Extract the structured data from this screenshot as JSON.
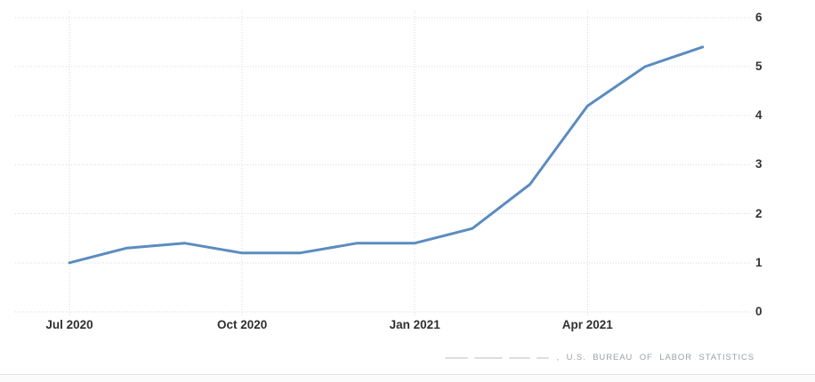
{
  "chart_data": {
    "type": "line",
    "title": "",
    "xlabel": "",
    "ylabel": "",
    "x": [
      "Jul 2020",
      "Aug 2020",
      "Sep 2020",
      "Oct 2020",
      "Nov 2020",
      "Dec 2020",
      "Jan 2021",
      "Feb 2021",
      "Mar 2021",
      "Apr 2021",
      "May 2021",
      "Jun 2021"
    ],
    "values": [
      1.0,
      1.3,
      1.4,
      1.2,
      1.2,
      1.4,
      1.4,
      1.7,
      2.6,
      4.2,
      5.0,
      5.4
    ],
    "x_tick_labels": [
      "Jul 2020",
      "Oct 2020",
      "Jan 2021",
      "Apr 2021"
    ],
    "x_tick_indices": [
      0,
      3,
      6,
      9
    ],
    "y_ticks": [
      0,
      1,
      2,
      3,
      4,
      5,
      6
    ],
    "ylim": [
      0,
      6
    ],
    "y_axis_side": "right",
    "grid": "dotted",
    "legend": "none",
    "line_color": "#5b8cc0",
    "gridline_color": "#d9d9d9"
  },
  "source": {
    "label": ",  U.S.  BUREAU  OF  LABOR  STATISTICS"
  }
}
